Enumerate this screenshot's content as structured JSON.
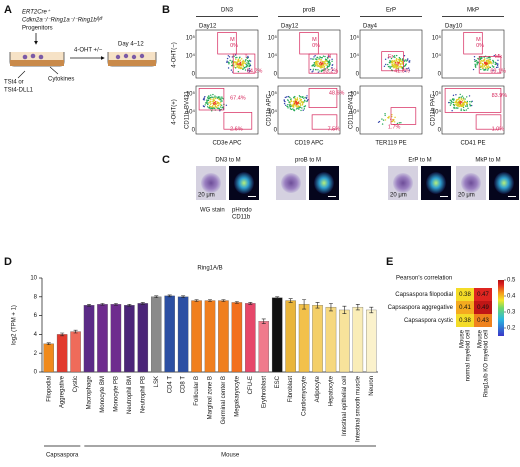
{
  "panels": {
    "A": {
      "letter": "A",
      "genotype1": "ERT2Cre⁺",
      "genotype2": "Cdkn2a⁻/⁻Ring1a⁻/⁻Ring1bᶠˡ/ᶠˡ",
      "cells": "Progenitors",
      "treatment": "4-OHT +/−",
      "days": "Day 4–12",
      "feeder1": "TSt4 or",
      "feeder2": "TSt4-DLL1",
      "cytokines": "Cytokines"
    },
    "B": {
      "letter": "B",
      "rows": [
        "4-OHT(−)",
        "4-OHT(+)"
      ],
      "flow_ticks": [
        "−10³",
        "0",
        "10³",
        "10⁴",
        "10⁵"
      ],
      "columns": [
        {
          "title": "DN3",
          "day": "Day12",
          "top_gates": [
            "M",
            "0%",
            "T",
            "54.2%"
          ],
          "bottom_gates": [
            "67.4%",
            "2.6%"
          ],
          "xlabel": "CD3e APC",
          "ylabel": "CD11b BV421"
        },
        {
          "title": "proB",
          "day": "Day12",
          "top_gates": [
            "M",
            "0%",
            "B",
            "93.2%"
          ],
          "bottom_gates": [
            "48.6%",
            "7.5%"
          ],
          "xlabel": "CD19 APC",
          "ylabel": "CD11b APC"
        },
        {
          "title": "ErP",
          "day": "Day4",
          "top_gates": [
            "Er",
            "41.0%"
          ],
          "bottom_gates": [
            "1.7%"
          ],
          "xlabel": "TER119 PE",
          "ylabel": "CD11b BV421"
        },
        {
          "title": "MkP",
          "day": "Day10",
          "top_gates": [
            "M",
            "0%",
            "Mk",
            "69.1%"
          ],
          "bottom_gates": [
            "83.9%",
            "1.0%"
          ],
          "xlabel": "CD41 PE",
          "ylabel": "CD11b PAC"
        }
      ]
    },
    "C": {
      "letter": "C",
      "titles": [
        "DN3 to M",
        "proB to M",
        "ErP to M",
        "MkP to M"
      ],
      "scale": "20 μm",
      "stain": "WG stain",
      "dye": "pHrodo",
      "marker": "CD11b"
    },
    "D": {
      "letter": "D",
      "type": "bar",
      "title": "Ring1A/B",
      "ylabel": "log2 (TPM + 1)",
      "ylim": [
        0,
        10
      ],
      "yticks": [
        0,
        2,
        4,
        6,
        8,
        10
      ],
      "categories": [
        "Filopodial",
        "Aggregative",
        "Cystic",
        "Macrophage",
        "Monocyte BM",
        "Monocyte PB",
        "Neutrophil BM",
        "Neutrophil PB",
        "LSK",
        "CD4 T",
        "CD8 T",
        "Follicular B",
        "Marginal zone B",
        "Germinal center B",
        "Megakaryocyte",
        "CFU-E",
        "Erythroblast",
        "ESC",
        "Fibroblast",
        "Cardiomyocyte",
        "Adipocyte",
        "Hepatocyte",
        "Intestinal epithelial cell",
        "Intestinal smooth muscle",
        "Neuron"
      ],
      "values": [
        3.0,
        4.0,
        4.3,
        7.1,
        7.2,
        7.2,
        7.1,
        7.3,
        8.0,
        8.1,
        8.0,
        7.6,
        7.6,
        7.6,
        7.4,
        7.3,
        5.4,
        7.9,
        7.6,
        7.2,
        7.1,
        6.9,
        6.6,
        6.9,
        6.6
      ],
      "errors": [
        0.1,
        0.15,
        0.15,
        0.1,
        0.1,
        0.1,
        0.1,
        0.1,
        0.1,
        0.1,
        0.1,
        0.1,
        0.1,
        0.1,
        0.1,
        0.1,
        0.25,
        0.1,
        0.2,
        0.5,
        0.3,
        0.4,
        0.4,
        0.3,
        0.3
      ],
      "colors": [
        "#f08a1c",
        "#e23a2e",
        "#ef6b5a",
        "#5b2a86",
        "#6e2c8e",
        "#6e2c8e",
        "#4b2478",
        "#4b2478",
        "#8a8a8a",
        "#2c4fa3",
        "#2c4fa3",
        "#f07f1e",
        "#f07f1e",
        "#f07f1e",
        "#f2701f",
        "#e6476a",
        "#f07a8c",
        "#111111",
        "#e9b53b",
        "#f2c14b",
        "#f4cf67",
        "#f6d87f",
        "#f8e39b",
        "#faedb7",
        "#fbf2cc"
      ],
      "groups": [
        {
          "name": "Capsaspora",
          "count": 3
        },
        {
          "name": "Mouse",
          "count": 22
        }
      ]
    },
    "E": {
      "letter": "E",
      "title": "Pearson's correlation",
      "rows": [
        "Capsaspora filopodial",
        "Capsaspora aggregative",
        "Capsaspora cystic"
      ],
      "columns": [
        [
          "Mouse",
          "normal myeloid cell"
        ],
        [
          "Mouse",
          "Ring1a/b KO myeloid cell"
        ]
      ],
      "values": [
        [
          0.38,
          0.47
        ],
        [
          0.41,
          0.49
        ],
        [
          0.38,
          0.43
        ]
      ],
      "clim": [
        0.15,
        0.5
      ],
      "cticks": [
        0.2,
        0.3,
        0.4,
        0.5
      ]
    }
  }
}
